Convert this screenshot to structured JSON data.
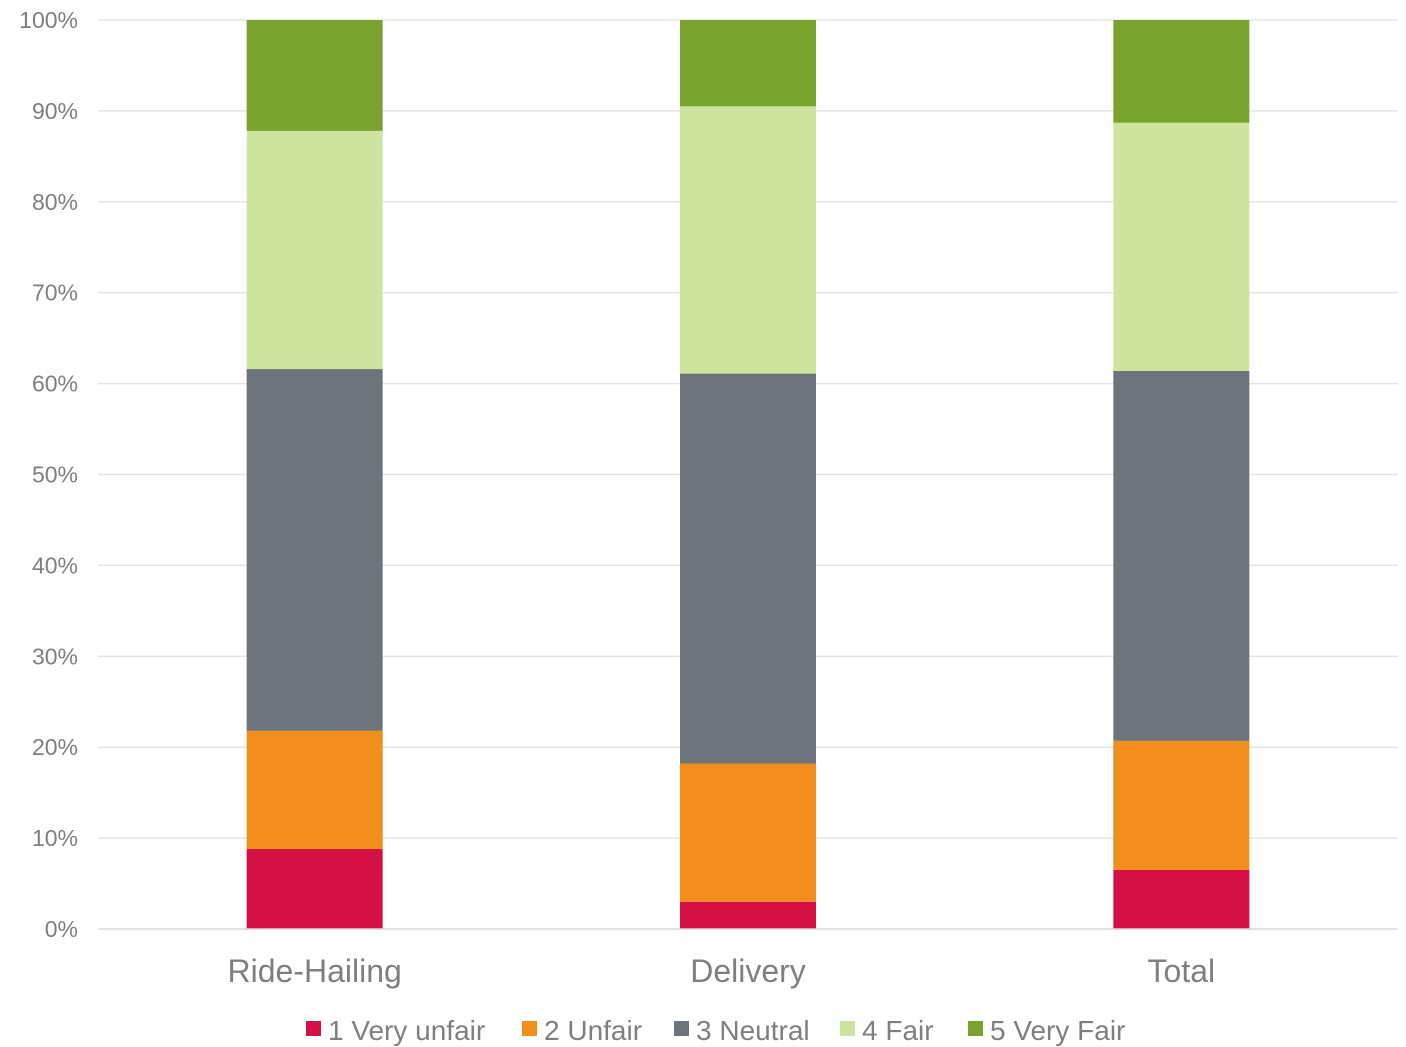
{
  "chart_data": {
    "type": "bar",
    "stacked": true,
    "categories": [
      "Ride-Hailing",
      "Delivery",
      "Total"
    ],
    "series": [
      {
        "name": "1 Very unfair",
        "color": "#d31145",
        "values": [
          8.8,
          3.0,
          6.5
        ]
      },
      {
        "name": "2 Unfair",
        "color": "#f28e1c",
        "values": [
          13.0,
          15.2,
          14.2
        ]
      },
      {
        "name": "3 Neutral",
        "color": "#6d737a",
        "values": [
          39.8,
          42.9,
          40.7
        ]
      },
      {
        "name": "4 Fair",
        "color": "#cde49f",
        "values": [
          26.2,
          29.4,
          27.3
        ]
      },
      {
        "name": "5 Very Fair",
        "color": "#7aa22e",
        "values": [
          12.2,
          9.5,
          11.3
        ]
      }
    ],
    "y_ticks": [
      "0%",
      "10%",
      "20%",
      "30%",
      "40%",
      "50%",
      "60%",
      "70%",
      "80%",
      "90%",
      "100%"
    ],
    "ylim": [
      0,
      100
    ],
    "grid": true,
    "legend_position": "bottom"
  }
}
